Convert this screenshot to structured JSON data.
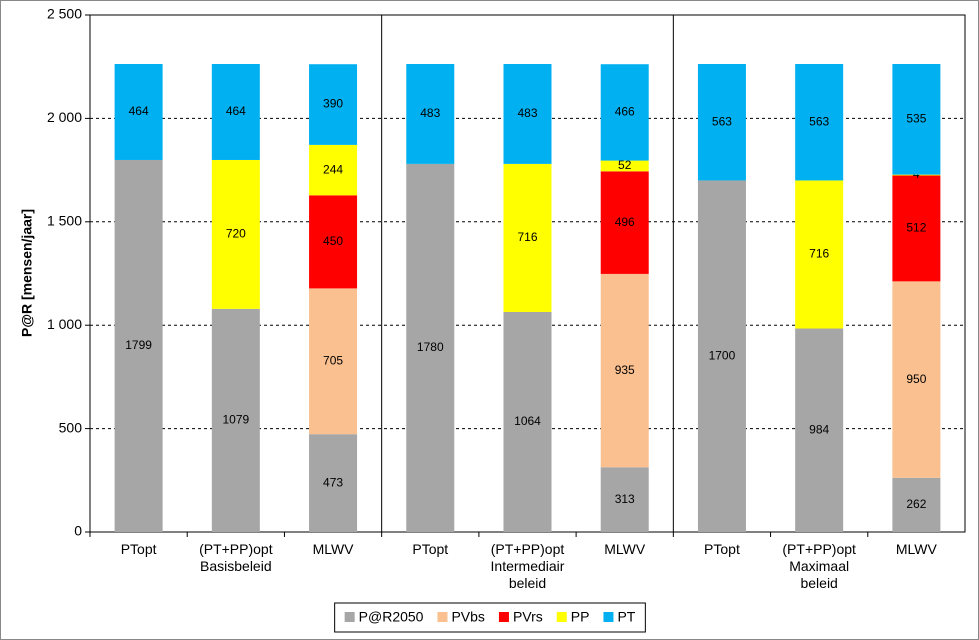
{
  "chart_data": {
    "type": "stacked_bar",
    "y_label": "P@R [mensen/jaar]",
    "categories": [
      "PTopt",
      "(PT+PP)opt\nBasisbeleid",
      "MLWV",
      "PTopt",
      "(PT+PP)opt\nIntermediair\nbeleid",
      "MLWV",
      "PTopt",
      "(PT+PP)opt\nMaximaal\nbeleid",
      "MLWV"
    ],
    "series": [
      {
        "name": "P@R2050",
        "color": "#a6a6a6",
        "values": [
          1799,
          1079,
          473,
          1780,
          1064,
          313,
          1700,
          984,
          262
        ]
      },
      {
        "name": "PVbs",
        "color": "#fac090",
        "values": [
          null,
          null,
          705,
          null,
          null,
          935,
          null,
          null,
          950
        ]
      },
      {
        "name": "PVrs",
        "color": "#ff0000",
        "values": [
          null,
          null,
          450,
          null,
          null,
          496,
          null,
          null,
          512
        ]
      },
      {
        "name": "PP",
        "color": "#ffff00",
        "values": [
          null,
          720,
          244,
          null,
          716,
          52,
          null,
          716,
          4
        ]
      },
      {
        "name": "PT",
        "color": "#00b0f0",
        "values": [
          464,
          464,
          390,
          483,
          483,
          466,
          563,
          563,
          535
        ]
      }
    ],
    "ylim": [
      0,
      2500
    ],
    "yticks": [
      0,
      500,
      {
        "value": 1000,
        "label": "1 000"
      },
      {
        "value": 1500,
        "label": "1 500"
      },
      {
        "value": 2000,
        "label": "2 000"
      },
      {
        "value": 2500,
        "label": "2 500"
      }
    ],
    "grid": true,
    "legend": "bottom"
  }
}
